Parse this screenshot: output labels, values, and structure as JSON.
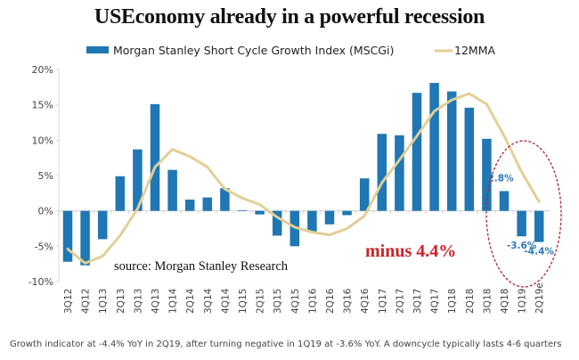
{
  "chart_data": {
    "type": "bar",
    "title": "USEconomy already in a powerful recession",
    "xlabel": "",
    "ylabel": "",
    "ylim": [
      -10,
      20
    ],
    "yticks": [
      20,
      15,
      10,
      5,
      0,
      -5,
      -10
    ],
    "ytick_format": "{v}%",
    "grid": false,
    "legend_position": "top",
    "categories": [
      "3Q12",
      "4Q12",
      "1Q13",
      "2Q13",
      "3Q13",
      "4Q13",
      "1Q14",
      "2Q14",
      "3Q14",
      "4Q14",
      "1Q15",
      "2Q15",
      "3Q15",
      "4Q15",
      "1Q16",
      "2Q16",
      "3Q16",
      "4Q16",
      "1Q17",
      "2Q17",
      "3Q17",
      "4Q17",
      "1Q18",
      "2Q18",
      "3Q18",
      "4Q18",
      "1Q19",
      "2Q19e"
    ],
    "series": [
      {
        "name": "Morgan Stanley Short Cycle Growth Index (MSCGi)",
        "type": "bar",
        "color": "#1f77b4",
        "values": [
          -7.2,
          -7.7,
          -4.0,
          4.9,
          8.7,
          15.1,
          5.8,
          1.6,
          1.9,
          3.2,
          0.1,
          -0.5,
          -3.5,
          -5.0,
          -3.0,
          -1.9,
          -0.6,
          4.6,
          10.9,
          10.7,
          16.7,
          18.1,
          16.9,
          14.6,
          10.2,
          2.8,
          -3.6,
          -4.4
        ]
      },
      {
        "name": "12MMA",
        "type": "line",
        "color": "#e2cf94",
        "values": [
          -5.4,
          -7.4,
          -6.4,
          -3.5,
          0.3,
          6.2,
          8.7,
          7.7,
          6.2,
          3.1,
          1.8,
          0.9,
          -0.9,
          -2.3,
          -3.0,
          -3.4,
          -2.5,
          -0.7,
          4.0,
          7.2,
          10.6,
          14.1,
          15.7,
          16.6,
          15.1,
          10.6,
          5.5,
          1.3
        ]
      }
    ],
    "data_labels": [
      {
        "category": "4Q18",
        "text": "2.8%"
      },
      {
        "category": "1Q19",
        "text": "-3.6%"
      },
      {
        "category": "2Q19e",
        "text": "-4.4%"
      }
    ],
    "annotations": {
      "source": "source: Morgan Stanley Research",
      "callout": "minus 4.4%",
      "callout_color": "#d0202a",
      "highlight_ellipse_categories": [
        "4Q18",
        "1Q19",
        "2Q19e"
      ],
      "highlight_color": "#b0203a"
    },
    "caption": "Growth indicator at -4.4% YoY in 2Q19, after turning negative in 1Q19 at -3.6% YoY. A downcycle typically lasts 4-6 quarters"
  }
}
